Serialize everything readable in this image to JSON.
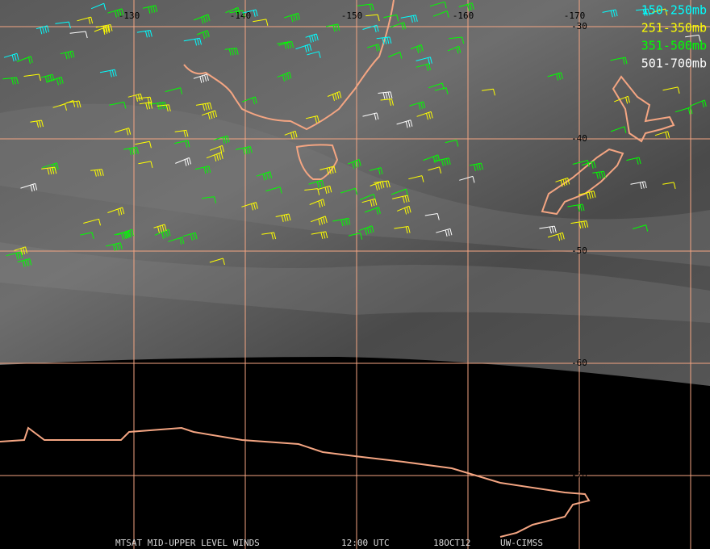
{
  "legend": [
    {
      "label": "150-250mb",
      "color": "#00ffff"
    },
    {
      "label": "251-350mb",
      "color": "#ffff00"
    },
    {
      "label": "351-500mb",
      "color": "#00ff00"
    },
    {
      "label": "501-700mb",
      "color": "#ffffff"
    }
  ],
  "grid": {
    "longitudes": [
      -130,
      -140,
      -150,
      -160,
      -170
    ],
    "latitudes": [
      -30,
      -40,
      -50,
      -60,
      -70
    ]
  },
  "footer": {
    "title": "MTSAT MID-UPPER LEVEL WINDS",
    "time": "12:00 UTC",
    "date": "18OCT12",
    "source": "UW-CIMSS"
  }
}
